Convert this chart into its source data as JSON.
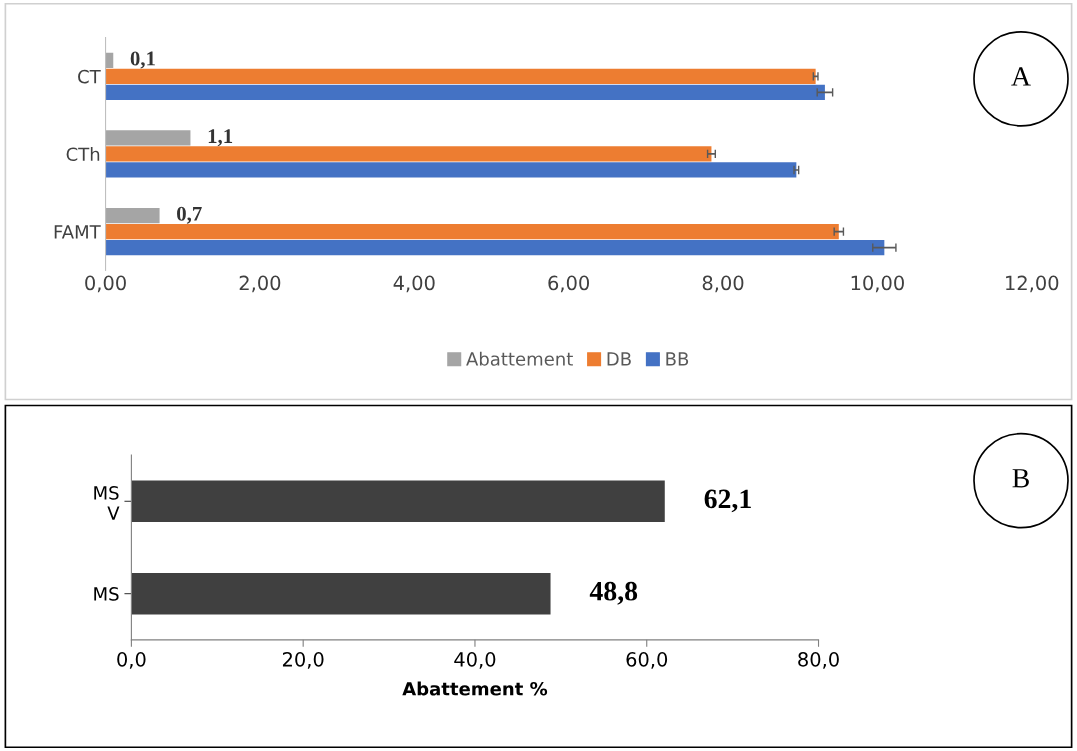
{
  "chart_data": [
    {
      "type": "bar",
      "orientation": "horizontal",
      "categories": [
        "CT",
        "CTh",
        "FAMT"
      ],
      "series": [
        {
          "name": "Abattement",
          "color": "#a5a5a5",
          "values": [
            0.1,
            1.1,
            0.7
          ],
          "value_labels": [
            "0,1",
            "1,1",
            "0,7"
          ]
        },
        {
          "name": "DB",
          "color": "#ed7d31",
          "values": [
            9.2,
            7.85,
            9.5
          ],
          "errors": [
            0.03,
            0.05,
            0.06
          ]
        },
        {
          "name": "BB",
          "color": "#4472c4",
          "values": [
            9.32,
            8.95,
            10.09
          ],
          "errors": [
            0.1,
            0.03,
            0.15
          ]
        }
      ],
      "xlim": [
        0,
        12
      ],
      "xticks": [
        {
          "value": 0,
          "label": "0,00"
        },
        {
          "value": 2,
          "label": "2,00"
        },
        {
          "value": 4,
          "label": "4,00"
        },
        {
          "value": 6,
          "label": "6,00"
        },
        {
          "value": 8,
          "label": "8,00"
        },
        {
          "value": 10,
          "label": "10,00"
        },
        {
          "value": 12,
          "label": "12,00"
        }
      ],
      "grid": false,
      "legend": "bottom",
      "annotations": [
        "A"
      ]
    },
    {
      "type": "bar",
      "orientation": "horizontal",
      "categories": [
        "MS\nV",
        "MS"
      ],
      "values": [
        62.1,
        48.8
      ],
      "color": "#404040",
      "value_labels": [
        "62,1",
        "48,8"
      ],
      "xlabel": "Abattement %",
      "xlim": [
        0,
        80
      ],
      "xticks": [
        {
          "value": 0,
          "label": "0,0"
        },
        {
          "value": 20,
          "label": "20,0"
        },
        {
          "value": 40,
          "label": "40,0"
        },
        {
          "value": 60,
          "label": "60,0"
        },
        {
          "value": 80,
          "label": "80,0"
        }
      ],
      "grid": false,
      "legend": false,
      "annotations": [
        "B"
      ]
    }
  ]
}
